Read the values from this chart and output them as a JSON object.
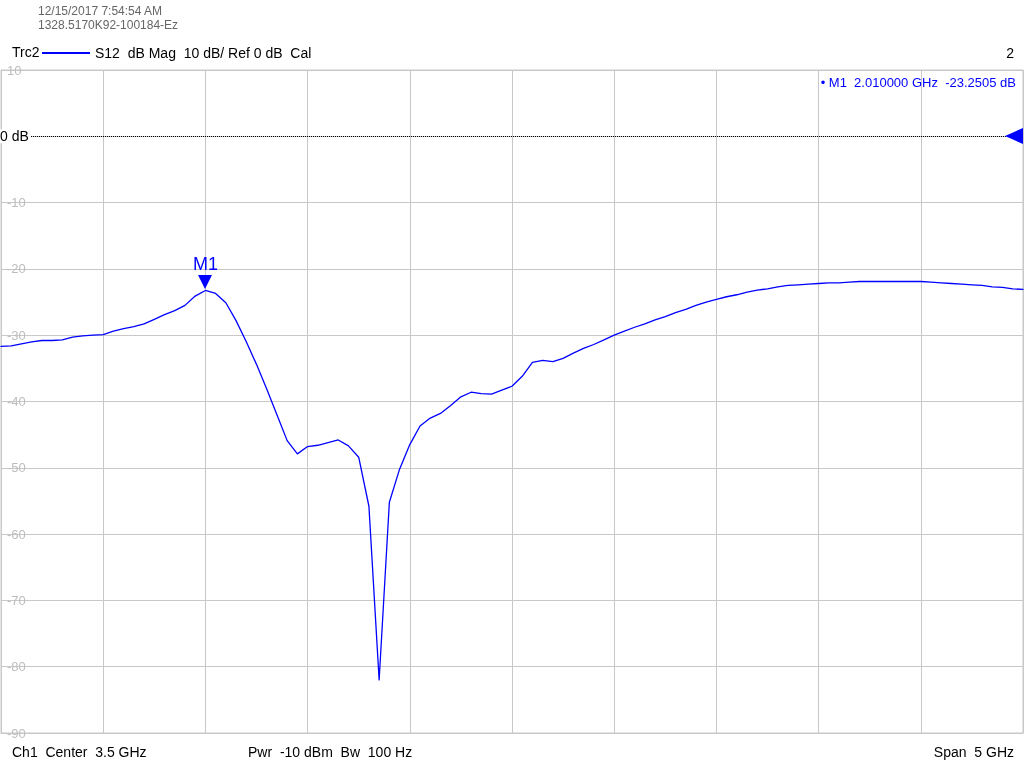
{
  "chart_data": {
    "type": "line",
    "title": "Trc2",
    "categories": [
      null,
      null,
      null,
      null,
      null,
      null,
      null,
      null,
      null,
      null,
      null,
      null,
      null,
      null,
      null,
      null,
      null,
      null,
      null,
      null,
      null,
      null,
      null,
      null,
      null,
      null,
      null,
      null,
      null,
      null,
      null,
      null,
      null,
      null,
      null,
      null,
      null,
      null,
      null,
      null,
      null,
      null,
      null,
      null,
      null,
      null,
      null,
      null,
      null,
      null,
      null,
      null,
      null,
      null,
      null,
      null,
      null,
      null,
      null,
      null,
      null,
      null,
      null,
      null,
      null,
      null,
      null,
      null,
      null,
      null,
      null,
      null,
      null,
      null,
      null,
      null,
      null,
      null,
      null,
      null,
      null,
      null,
      null,
      null,
      null,
      null,
      null,
      null,
      null,
      null,
      null,
      null,
      null,
      null,
      null,
      null,
      null,
      null,
      null,
      null,
      null
    ],
    "series": [
      {
        "name": "S12  dB Mag  10 dB/ Ref 0 dB  Cal",
        "color": "#0000ff",
        "values": [
          -31.7,
          -31.6,
          -31.3,
          -31.0,
          -30.8,
          -30.8,
          -30.7,
          -30.3,
          -30.1,
          -30.0,
          -29.9,
          -29.4,
          -29.0,
          -28.7,
          -28.3,
          -27.6,
          -26.9,
          -26.3,
          -25.5,
          -24.1,
          -23.25,
          -23.7,
          -25.1,
          -27.8,
          -31.0,
          -34.4,
          -38.1,
          -42.0,
          -45.9,
          -47.9,
          -46.8,
          -46.6,
          -46.2,
          -45.8,
          -46.7,
          -48.4,
          -55.8,
          -82,
          -55.2,
          -50.2,
          -46.5,
          -43.7,
          -42.5,
          -41.8,
          -40.6,
          -39.3,
          -38.6,
          -38.8,
          -38.9,
          -38.3,
          -37.7,
          -36.2,
          -34.1,
          -33.8,
          -34.0,
          -33.5,
          -32.7,
          -32.0,
          -31.4,
          -30.7,
          -30.0,
          -29.4,
          -28.8,
          -28.3,
          -27.7,
          -27.2,
          -26.6,
          -26.1,
          -25.5,
          -25.0,
          -24.6,
          -24.2,
          -23.9,
          -23.5,
          -23.2,
          -23.0,
          -22.7,
          -22.5,
          -22.4,
          -22.3,
          -22.2,
          -22.1,
          -22.1,
          -22.0,
          -21.9,
          -21.9,
          -21.9,
          -21.9,
          -21.9,
          -21.9,
          -21.9,
          -22.0,
          -22.1,
          -22.2,
          -22.3,
          -22.4,
          -22.5,
          -22.7,
          -22.8,
          -23.0,
          -23.1
        ]
      }
    ],
    "ylim": [
      -90,
      10
    ],
    "yticks": [
      10,
      {
        "value": 0,
        "label": null
      },
      -10,
      -20,
      -30,
      -40,
      -50,
      -60,
      -70,
      -80,
      -90
    ],
    "tick_labels": "y",
    "grid": true,
    "legend": "top left",
    "marker": "none",
    "line_style": "solid",
    "ref_lines": [
      {
        "axis": "y",
        "value": 0,
        "label": "0 dB",
        "color": "#000000",
        "line_style": "dotted"
      }
    ],
    "annotations": [
      "12/15/2017 7:54:54 AM",
      "1328.5170K92-100184-Ez",
      "2",
      "• M1  2.010000 GHz  -23.2505 dB",
      {
        "text": "M1",
        "y": -23.2505
      },
      "Ch1  Center  3.5 GHz",
      "Pwr  -10 dBm  Bw  100 Hz",
      "Span  5 GHz"
    ]
  }
}
